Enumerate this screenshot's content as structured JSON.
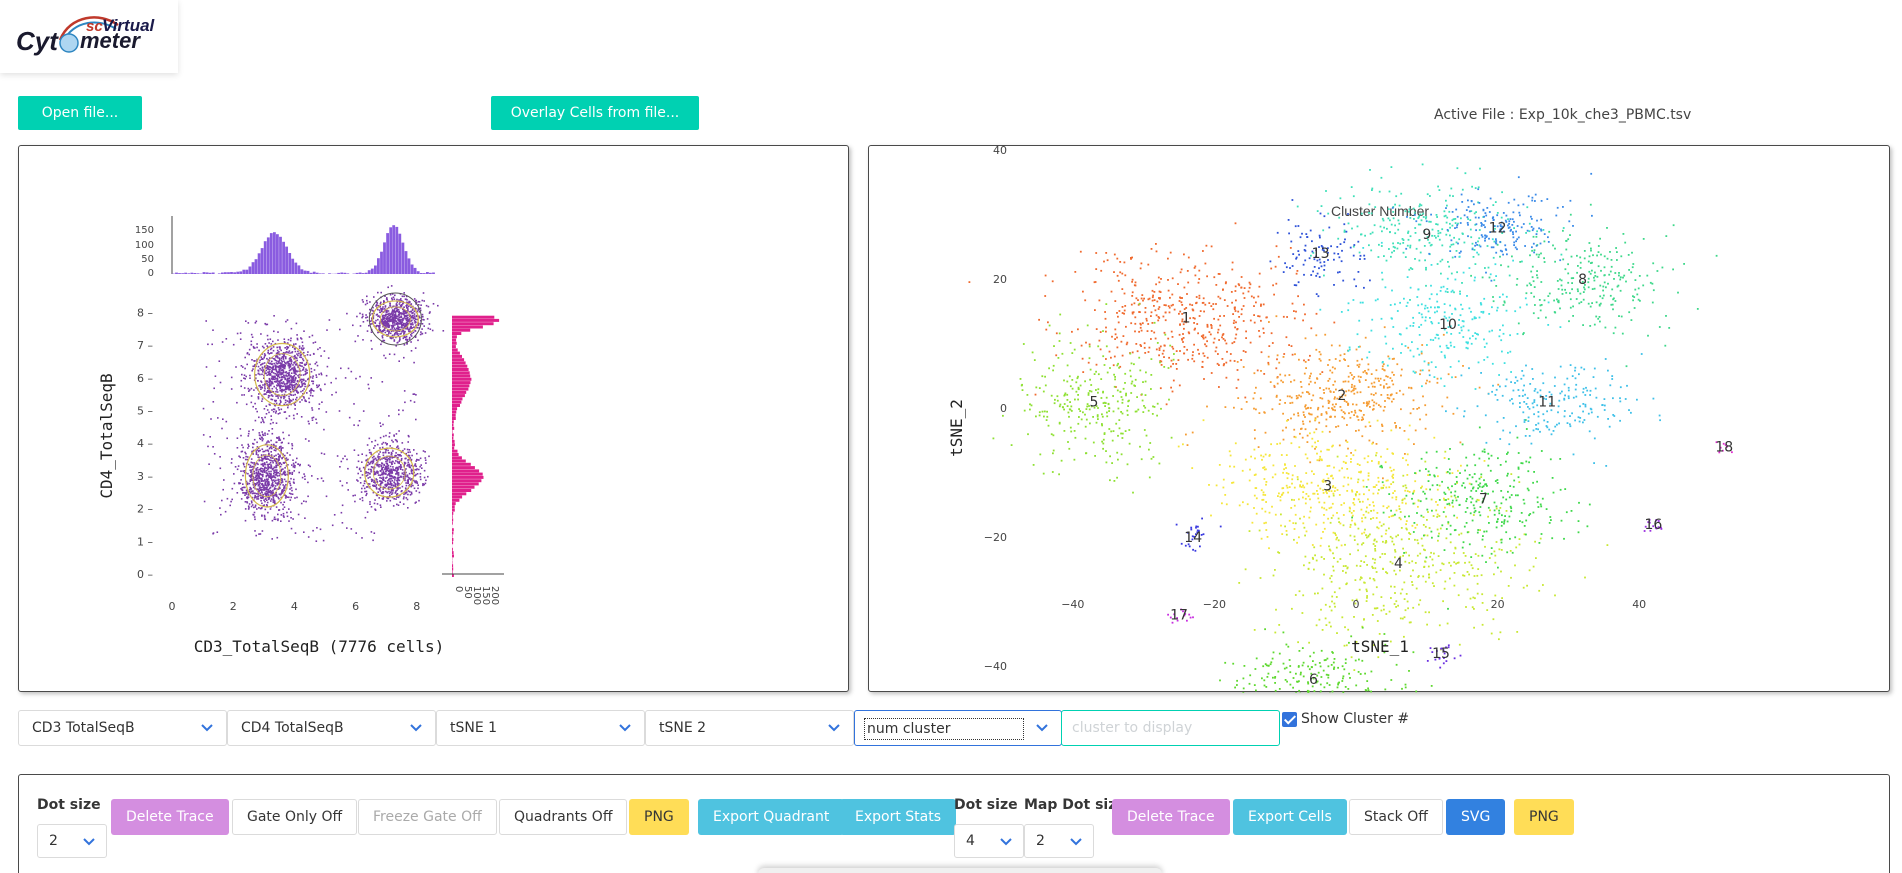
{
  "logo": {
    "sc": "sc",
    "virtual": "Virtual",
    "cyt": "Cyt",
    "meter": "meter"
  },
  "buttons": {
    "open_file": "Open file...",
    "overlay_cells": "Overlay Cells from file..."
  },
  "active_file": {
    "label": "Active File : ",
    "name": "Exp_10k_che3_PBMC.tsv"
  },
  "left_plot": {
    "xlabel": "CD3_TotalSeqB (7776 cells)",
    "ylabel": "CD4_TotalSeqB",
    "x_ticks": [
      "0",
      "2",
      "4",
      "6",
      "8"
    ],
    "y_ticks": [
      "0",
      "1",
      "2",
      "3",
      "4",
      "5",
      "6",
      "7",
      "8"
    ],
    "top_hist_ticks": [
      "150",
      "100",
      "50",
      "0"
    ],
    "right_hist_ticks": [
      "0",
      "50",
      "100",
      "150",
      "200"
    ],
    "point_color": "#7a3aa8",
    "gate_color": "#d4b84a",
    "top_hist_color": "#8a5ce0",
    "right_hist_color": "#e0208c"
  },
  "right_plot": {
    "title": "Cluster Number",
    "xlabel": "tSNE_1",
    "ylabel": "tSNE_2",
    "x_ticks": [
      "−40",
      "−20",
      "0",
      "20",
      "40"
    ],
    "y_ticks": [
      "40",
      "20",
      "0",
      "−20",
      "−40"
    ],
    "clusters": [
      {
        "id": "1",
        "color": "#f06a2e"
      },
      {
        "id": "2",
        "color": "#f59c32"
      },
      {
        "id": "3",
        "color": "#f5e63a"
      },
      {
        "id": "4",
        "color": "#c8e832"
      },
      {
        "id": "5",
        "color": "#8ee032"
      },
      {
        "id": "6",
        "color": "#5ed82e"
      },
      {
        "id": "7",
        "color": "#3ed84a"
      },
      {
        "id": "8",
        "color": "#3ed88a"
      },
      {
        "id": "9",
        "color": "#3ee0b8"
      },
      {
        "id": "10",
        "color": "#3ee0e0"
      },
      {
        "id": "11",
        "color": "#3ec0e8"
      },
      {
        "id": "12",
        "color": "#3a8ae8"
      },
      {
        "id": "13",
        "color": "#2e52d8"
      },
      {
        "id": "14",
        "color": "#3a3ae0"
      },
      {
        "id": "15",
        "color": "#6a2ee0"
      },
      {
        "id": "16",
        "color": "#9a2ee0"
      },
      {
        "id": "17",
        "color": "#c82ee0"
      },
      {
        "id": "18",
        "color": "#e02ed0"
      }
    ]
  },
  "selects": {
    "x_channel": "CD3 TotalSeqB",
    "y_channel": "CD4 TotalSeqB",
    "map_x": "tSNE 1",
    "map_y": "tSNE 2",
    "color_by": "num cluster"
  },
  "cluster_input": {
    "placeholder": "cluster to display"
  },
  "show_cluster": {
    "label": "Show Cluster #",
    "checked": true
  },
  "toolbar": {
    "dot_size_label": "Dot size",
    "dot_size_value": "2",
    "delete_trace": "Delete Trace",
    "gate_only": "Gate Only Off",
    "freeze_gate": "Freeze Gate Off",
    "quadrants": "Quadrants Off",
    "png": "PNG",
    "export_quadrant": "Export Quadrant",
    "export_stats": "Export Stats",
    "dot_size_label_2": "Dot size",
    "dot_size_value_2": "4",
    "map_dot_size_label": "Map Dot size",
    "map_dot_size_value": "2",
    "delete_trace_2": "Delete Trace",
    "export_cells": "Export Cells",
    "stack": "Stack Off",
    "svg": "SVG",
    "png_2": "PNG"
  }
}
